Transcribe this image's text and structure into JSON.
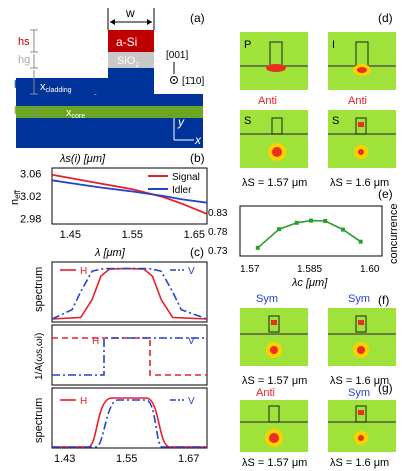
{
  "panel_labels": {
    "a": "(a)",
    "b": "(b)",
    "c": "(c)",
    "d": "(d)",
    "e": "(e)",
    "f": "(f)",
    "g": "(g)"
  },
  "a": {
    "width_label": "w",
    "hs": "hs",
    "hs_sub": "s",
    "hg": "hg",
    "hg_sub": "g",
    "hcl": "hcl",
    "hcl_sub": "cl",
    "hco": "hco",
    "hco_sub": "co",
    "asi": "a-Si",
    "sio": "SiO",
    "sio_sub": "2",
    "xclad": "x",
    "xclad_sub": "cladding",
    "xcore": "x",
    "xcore_sub": "core",
    "dir1": "[001]",
    "dir2": "[1̄10]",
    "y_axis": "y",
    "x_axis": "x",
    "colors": {
      "asi": "#c00000",
      "sio": "#c8c8c8",
      "clad": "#003399",
      "core": "#6aa624",
      "sub": "#003399"
    }
  },
  "b": {
    "xlabel": "λs(i) [μm]",
    "ylabel": "neff",
    "ylabel_main": "n",
    "ylabel_sub": "eff",
    "xticks": [
      "1.45",
      "1.55",
      "1.65"
    ],
    "yticks": [
      "3.06",
      "3.02",
      "2.98"
    ]
  },
  "c": {
    "xlabel": "λ [μm]",
    "ylabel_top": "spectrum",
    "ylabel_mid": "1/A(ωs,ωi)",
    "ylabel_bot": "spectrum",
    "xticks": [
      "1.43",
      "1.55",
      "1.67"
    ],
    "legend_h": "H",
    "legend_v": "V"
  },
  "d": {
    "titles": [
      "P",
      "I",
      "S",
      "S"
    ],
    "anti1": "Anti",
    "anti2": "Anti",
    "cap1": "λS = 1.57 μm",
    "cap2": "λS = 1.6 μm"
  },
  "e": {
    "xlabel": "λc [μm]",
    "ylabel": "concurrence",
    "xticks": [
      "1.57",
      "1.585",
      "1.60"
    ],
    "yticks": [
      "0.83",
      "0.78",
      "0.73"
    ]
  },
  "f": {
    "sym1": "Sym",
    "sym2": "Sym",
    "cap1": "λS = 1.57 μm",
    "cap2": "λS = 1.6 μm"
  },
  "g": {
    "anti": "Anti",
    "sym": "Sym",
    "cap1": "λS = 1.57 μm",
    "cap2": "λS = 1.6 μm"
  },
  "chart_data": [
    {
      "type": "line",
      "xlabel": "λs(i) [μm]",
      "ylabel": "neff",
      "xlim": [
        1.42,
        1.67
      ],
      "ylim": [
        2.97,
        3.07
      ],
      "series": [
        {
          "name": "Signal",
          "color": "#e8202a",
          "x": [
            1.42,
            1.45,
            1.5,
            1.55,
            1.6,
            1.63,
            1.67
          ],
          "y": [
            3.058,
            3.052,
            3.042,
            3.032,
            3.018,
            3.006,
            2.988
          ]
        },
        {
          "name": "Idler",
          "color": "#2244cc",
          "x": [
            1.42,
            1.45,
            1.5,
            1.55,
            1.6,
            1.63,
            1.67
          ],
          "y": [
            3.048,
            3.043,
            3.035,
            3.028,
            3.02,
            3.014,
            3.008
          ]
        }
      ]
    },
    {
      "type": "line",
      "xlim": [
        1.42,
        1.69
      ],
      "ylim": [
        0,
        1.05
      ],
      "series": [
        {
          "name": "H",
          "color": "#e8202a",
          "style": "solid",
          "x": [
            1.42,
            1.47,
            1.49,
            1.505,
            1.52,
            1.55,
            1.58,
            1.595,
            1.61,
            1.63,
            1.69
          ],
          "y": [
            0.02,
            0.05,
            0.4,
            0.85,
            0.99,
            1.0,
            0.99,
            0.85,
            0.4,
            0.05,
            0.02
          ]
        },
        {
          "name": "V",
          "color": "#2244cc",
          "style": "dashdot",
          "x": [
            1.42,
            1.455,
            1.47,
            1.49,
            1.51,
            1.55,
            1.59,
            1.61,
            1.63,
            1.645,
            1.69
          ],
          "y": [
            0.02,
            0.2,
            0.55,
            0.95,
            1.0,
            1.0,
            1.0,
            0.95,
            0.55,
            0.2,
            0.02
          ]
        }
      ]
    },
    {
      "type": "line",
      "xlabel": "λc [μm]",
      "ylabel": "concurrence",
      "xlim": [
        1.565,
        1.605
      ],
      "ylim": [
        0.71,
        0.85
      ],
      "series": [
        {
          "name": "",
          "color": "#2a9d2a",
          "x": [
            1.57,
            1.576,
            1.581,
            1.585,
            1.589,
            1.594,
            1.599
          ],
          "y": [
            0.733,
            0.785,
            0.803,
            0.809,
            0.808,
            0.784,
            0.75
          ]
        }
      ]
    }
  ]
}
